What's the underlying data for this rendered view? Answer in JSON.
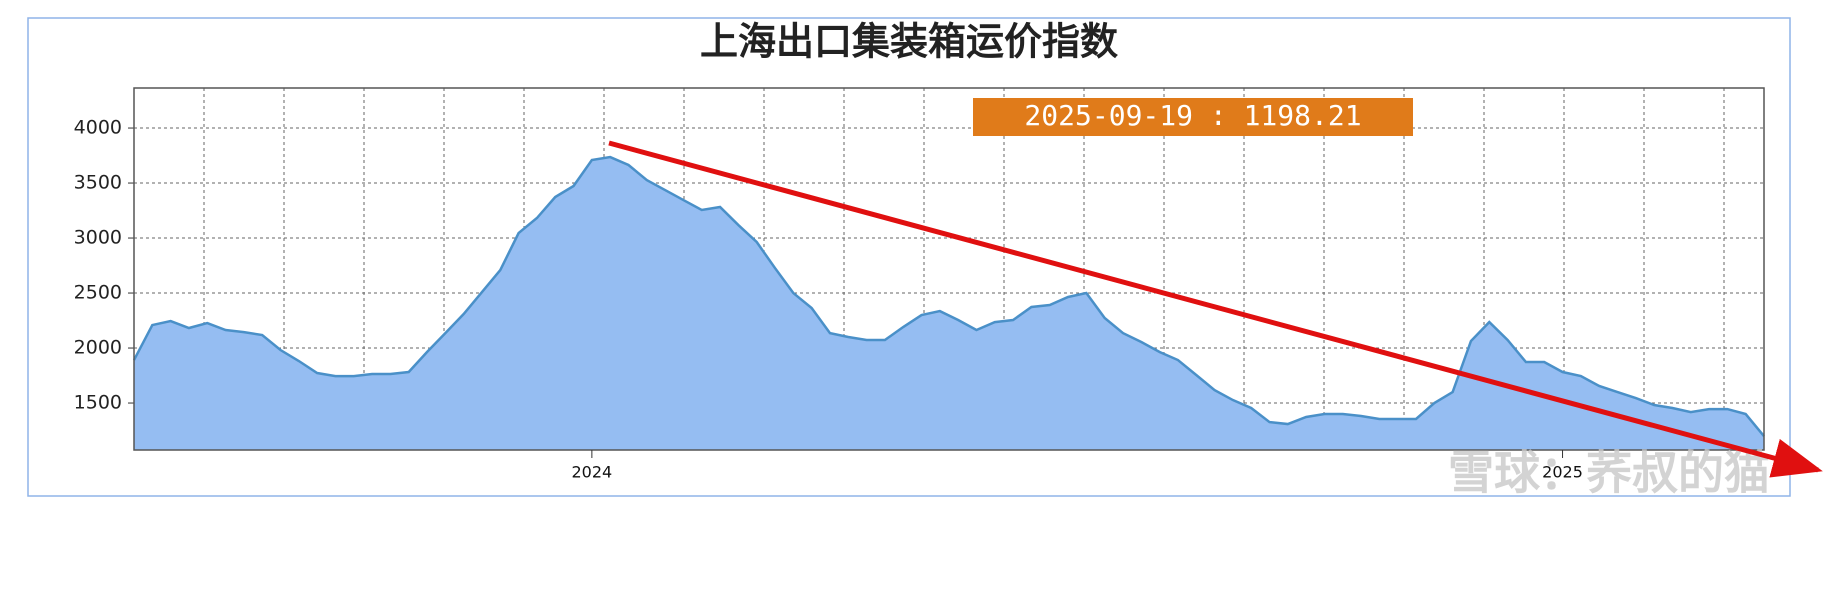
{
  "chart_data": {
    "type": "area",
    "title": "上海出口集装箱运价指数",
    "annotation": "2025-09-19 : 1198.21",
    "watermark": "雪球：荞叔的猫",
    "categories": [
      null,
      null,
      null,
      null,
      null,
      null,
      null,
      null,
      null,
      null,
      null,
      null,
      null,
      null,
      null,
      null,
      null,
      null,
      null,
      null,
      null,
      null,
      null,
      null,
      null,
      "2024",
      null,
      null,
      null,
      null,
      null,
      null,
      null,
      null,
      null,
      null,
      null,
      null,
      null,
      null,
      null,
      null,
      null,
      null,
      null,
      null,
      null,
      null,
      null,
      null,
      null,
      null,
      null,
      null,
      null,
      null,
      null,
      null,
      null,
      null,
      null,
      null,
      null,
      null,
      null,
      null,
      null,
      null,
      null,
      null,
      null,
      null,
      null,
      null,
      null,
      null,
      null,
      null,
      "2025",
      null,
      null,
      null,
      null,
      null,
      null,
      null,
      null,
      null,
      null,
      null
    ],
    "values": [
      1891,
      2209,
      2245,
      2182,
      2227,
      2164,
      2145,
      2118,
      1982,
      1882,
      1773,
      1745,
      1745,
      1764,
      1764,
      1782,
      1964,
      2136,
      2309,
      2509,
      2709,
      3045,
      3182,
      3373,
      3473,
      3709,
      3736,
      3664,
      3527,
      3436,
      3345,
      3255,
      3282,
      3118,
      2964,
      2727,
      2500,
      2364,
      2136,
      2100,
      2073,
      2073,
      2191,
      2300,
      2336,
      2255,
      2164,
      2236,
      2255,
      2373,
      2391,
      2464,
      2500,
      2273,
      2136,
      2055,
      1964,
      1891,
      1755,
      1618,
      1527,
      1455,
      1327,
      1309,
      1373,
      1400,
      1400,
      1382,
      1355,
      1355,
      1355,
      1500,
      1600,
      2064,
      2236,
      2073,
      1873,
      1873,
      1782,
      1745,
      1655,
      1600,
      1545,
      1482,
      1455,
      1418,
      1445,
      1445,
      1400,
      1198.21
    ],
    "color": "#95bdf2",
    "line_color": "#4a90c8",
    "ylim": [
      1073,
      4364
    ],
    "yticks": [
      1500,
      2000,
      2500,
      3000,
      3500,
      4000
    ],
    "grid": true
  }
}
